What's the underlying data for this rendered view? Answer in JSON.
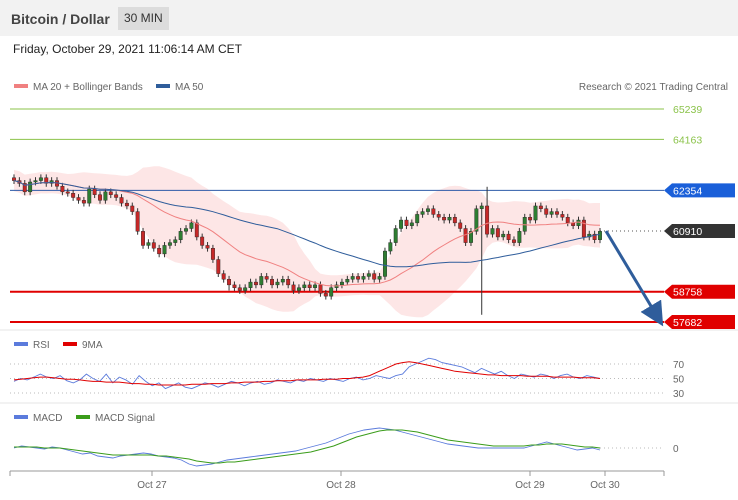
{
  "header": {
    "title": "Bitcoin / Dollar",
    "timeframe": "30 MIN"
  },
  "datetime": "Friday, October 29, 2021 11:06:14 AM CET",
  "credit": "Research © 2021 Trading Central",
  "colors": {
    "up": "#2e7d32",
    "down": "#c62828",
    "ma20": "#f08080",
    "bands": "#fde2e2",
    "ma50": "#2f5d9b",
    "pivot_line": "#2e5ba8",
    "support": "#e00000",
    "resistance": "#8bc34a",
    "arrow": "#2f5d9b",
    "rsi": "#5b7bdc",
    "rsi_ma": "#e00000",
    "macd": "#5b7bdc",
    "macd_signal": "#3a9c1a"
  },
  "chart_data": [
    {
      "type": "candlestick",
      "legend": [
        {
          "name": "MA 20 + Bollinger Bands",
          "color": "#f08080"
        },
        {
          "name": "MA 50",
          "color": "#2f5d9b"
        }
      ],
      "x_ticks": [
        "Oct 27",
        "Oct 28",
        "Oct 29",
        "Oct 30"
      ],
      "y_range": [
        57400,
        65700
      ],
      "levels": [
        {
          "label": "65239",
          "value": 65239,
          "kind": "resistance"
        },
        {
          "label": "64163",
          "value": 64163,
          "kind": "resistance"
        },
        {
          "label": "62354",
          "value": 62354,
          "kind": "pivot"
        },
        {
          "label": "60910",
          "value": 60910,
          "kind": "last"
        },
        {
          "label": "58758",
          "value": 58758,
          "kind": "support"
        },
        {
          "label": "57682",
          "value": 57682,
          "kind": "support"
        }
      ],
      "close": [
        62700,
        62600,
        62300,
        62650,
        62700,
        62800,
        62600,
        62700,
        62500,
        62300,
        62250,
        62100,
        62000,
        61900,
        62400,
        62200,
        62000,
        62300,
        62200,
        62100,
        61900,
        61800,
        61600,
        60900,
        60400,
        60500,
        60300,
        60100,
        60400,
        60500,
        60600,
        60900,
        61000,
        61200,
        60700,
        60400,
        60300,
        59900,
        59400,
        59200,
        59000,
        58900,
        58800,
        58900,
        59100,
        59000,
        59300,
        59200,
        59000,
        59100,
        59200,
        59000,
        58800,
        58900,
        59000,
        58900,
        59000,
        58700,
        58600,
        58900,
        59000,
        59100,
        59200,
        59300,
        59200,
        59300,
        59400,
        59200,
        59300,
        60200,
        60500,
        61000,
        61300,
        61100,
        61200,
        61500,
        61600,
        61700,
        61500,
        61400,
        61300,
        61400,
        61200,
        61000,
        60500,
        60900,
        61700,
        61800,
        60800,
        61000,
        60700,
        60800,
        60600,
        60500,
        60900,
        61400,
        61300,
        61800,
        61700,
        61500,
        61600,
        61500,
        61400,
        61200,
        61100,
        61300,
        60700,
        60800,
        60600,
        60900
      ],
      "high_spike": 62480,
      "low_spike": 57940,
      "last_value": 60910,
      "forecast_target": 57682
    },
    {
      "type": "line",
      "name_series": [
        "RSI",
        "9MA"
      ],
      "y_ticks": [
        70,
        50,
        30
      ],
      "rsi": [
        46,
        50,
        48,
        52,
        56,
        52,
        50,
        54,
        47,
        44,
        48,
        56,
        50,
        46,
        56,
        44,
        52,
        48,
        42,
        54,
        46,
        40,
        44,
        36,
        40,
        44,
        38,
        36,
        40,
        44,
        42,
        38,
        42,
        46,
        44,
        40,
        44,
        46,
        42,
        44,
        48,
        46,
        44,
        48,
        46,
        50,
        48,
        46,
        50,
        48,
        46,
        50,
        52,
        48,
        50,
        54,
        52,
        50,
        54,
        56,
        66,
        70,
        74,
        78,
        76,
        72,
        70,
        68,
        66,
        62,
        58,
        64,
        60,
        56,
        60,
        54,
        50,
        56,
        54,
        52,
        56,
        54,
        50,
        54,
        56,
        52,
        50,
        54,
        52,
        50
      ],
      "rsi_ma": [
        48,
        49,
        50,
        51,
        52,
        52,
        51,
        50,
        49,
        49,
        48,
        47,
        46,
        46,
        45,
        45,
        45,
        44,
        43,
        43,
        42,
        42,
        41,
        41,
        41,
        41,
        41,
        42,
        42,
        42,
        43,
        43,
        43,
        44,
        44,
        45,
        45,
        45,
        46,
        46,
        47,
        47,
        47,
        48,
        48,
        48,
        48,
        49,
        49,
        49,
        50,
        50,
        51,
        52,
        54,
        58,
        62,
        66,
        70,
        72,
        73,
        72,
        70,
        68,
        66,
        64,
        62,
        60,
        59,
        58,
        57,
        56,
        55,
        55,
        54,
        54,
        54,
        54,
        53,
        53,
        53,
        53,
        52,
        52,
        52,
        52,
        51,
        51,
        51,
        50
      ]
    },
    {
      "type": "line",
      "name_series": [
        "MACD",
        "MACD Signal"
      ],
      "y_ticks": [
        0
      ],
      "macd": [
        0,
        2,
        1,
        0,
        -1,
        1,
        0,
        -2,
        -4,
        -6,
        -5,
        -8,
        -9,
        -10,
        -8,
        -7,
        -6,
        -5,
        -6,
        -8,
        -9,
        -10,
        -12,
        -16,
        -18,
        -17,
        -16,
        -14,
        -12,
        -11,
        -10,
        -9,
        -8,
        -7,
        -6,
        -5,
        -4,
        -3,
        -1,
        1,
        3,
        5,
        8,
        11,
        14,
        16,
        18,
        19,
        20,
        19,
        18,
        16,
        14,
        12,
        10,
        8,
        6,
        4,
        3,
        2,
        1,
        0,
        0,
        0,
        0,
        0,
        0,
        0,
        2,
        4,
        6,
        4,
        2,
        0,
        -2,
        -1,
        0,
        -2
      ],
      "signal": [
        1,
        1,
        1,
        1,
        0,
        0,
        0,
        -1,
        -2,
        -3,
        -4,
        -5,
        -6,
        -7,
        -7,
        -7,
        -7,
        -7,
        -7,
        -8,
        -8,
        -9,
        -10,
        -11,
        -13,
        -14,
        -15,
        -15,
        -14,
        -14,
        -13,
        -12,
        -11,
        -10,
        -9,
        -8,
        -7,
        -6,
        -5,
        -4,
        -2,
        0,
        2,
        5,
        8,
        11,
        13,
        15,
        17,
        18,
        18,
        18,
        17,
        16,
        14,
        12,
        10,
        8,
        7,
        6,
        5,
        4,
        3,
        2,
        2,
        2,
        2,
        2,
        3,
        3,
        4,
        4,
        4,
        3,
        2,
        1,
        1,
        0
      ]
    }
  ],
  "rsi_legend": [
    "RSI",
    "9MA"
  ],
  "macd_legend": [
    "MACD",
    "MACD Signal"
  ]
}
